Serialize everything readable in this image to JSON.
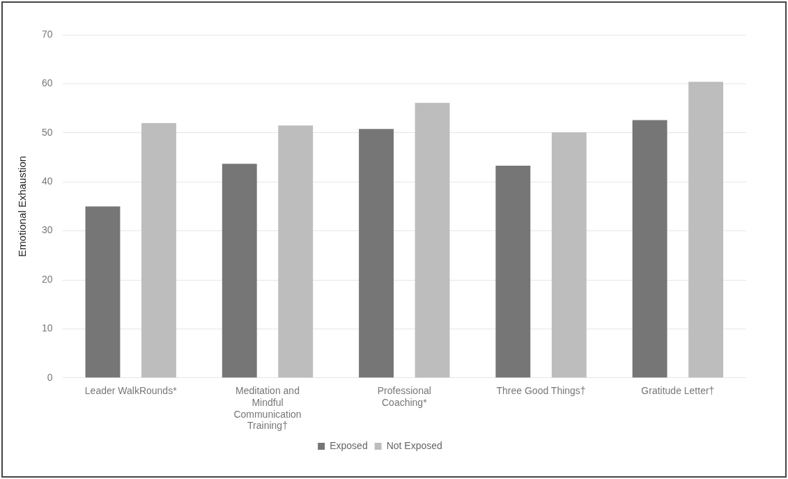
{
  "chart_data": {
    "type": "bar",
    "ylabel": "Emotional Exhaustion",
    "categories": [
      "Leader WalkRounds*",
      "Meditation and Mindful Communication Training†",
      "Professional Coaching*",
      "Three Good Things†",
      "Gratitude Letter†"
    ],
    "series": [
      {
        "name": "Exposed",
        "color": "#767676",
        "values": [
          35,
          43.7,
          50.8,
          43.3,
          52.6
        ]
      },
      {
        "name": "Not Exposed",
        "color": "#bdbdbd",
        "values": [
          52,
          51.5,
          56.1,
          50.1,
          60.4
        ]
      }
    ],
    "ylim": [
      0,
      70
    ],
    "yticks": [
      0,
      10,
      20,
      30,
      40,
      50,
      60,
      70
    ],
    "grid": "y",
    "legend": "bottom"
  }
}
